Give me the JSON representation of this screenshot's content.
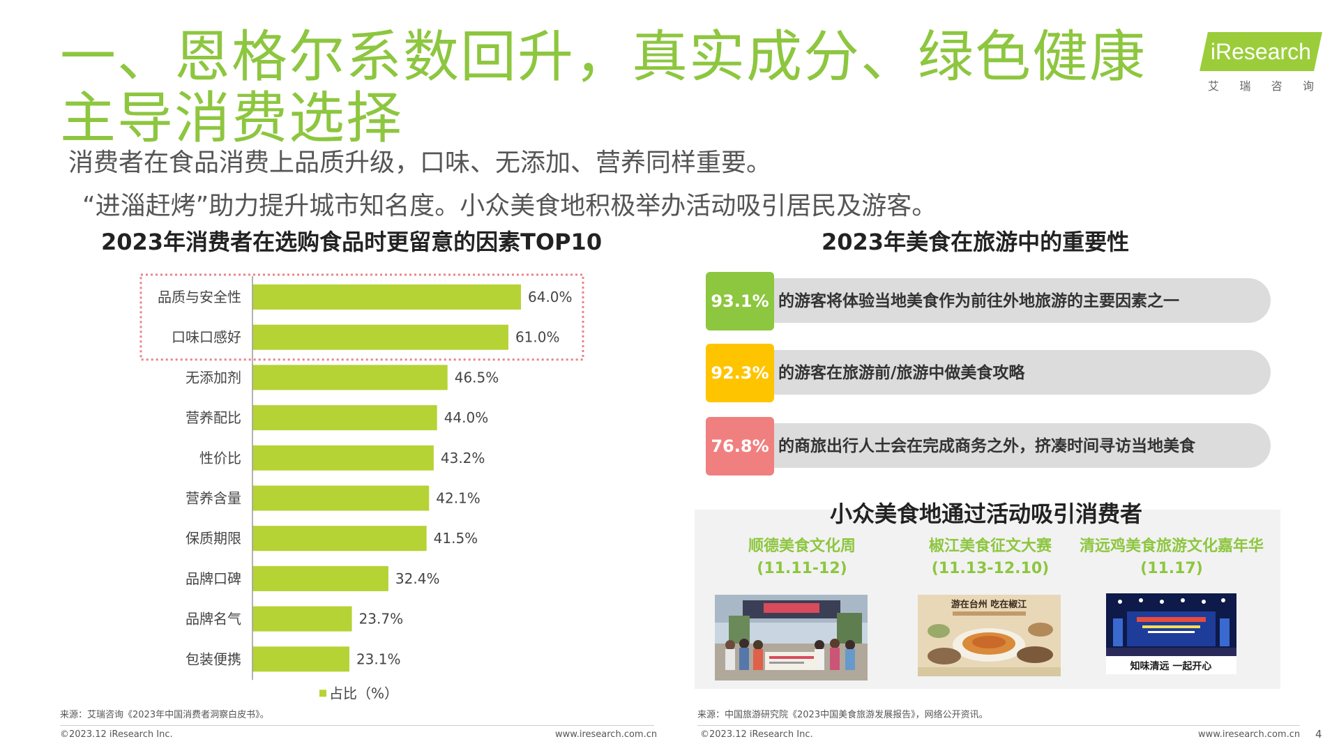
{
  "header": {
    "title": "一、恩格尔系数回升，真实成分、绿色健康主导消费选择",
    "subtitle_1": "消费者在食品消费上品质升级，口味、无添加、营养同样重要。",
    "subtitle_2": "“进淄赶烤”助力提升城市知名度。小众美食地积极举办活动吸引居民及游客。",
    "logo_text": "iResearch",
    "logo_cn": [
      "艾",
      "瑞",
      "咨",
      "询"
    ]
  },
  "left": {
    "title": "2023年消费者在选购食品时更留意的因素TOP10",
    "legend": "占比（%）",
    "source": "来源：艾瑞咨询《2023年中国消费者洞察白皮书》。"
  },
  "chart_data": {
    "type": "bar",
    "orientation": "horizontal",
    "title": "2023年消费者在选购食品时更留意的因素TOP10",
    "categories": [
      "品质与安全性",
      "口味口感好",
      "无添加剂",
      "营养配比",
      "性价比",
      "营养含量",
      "保质期限",
      "品牌口碑",
      "品牌名气",
      "包装便携"
    ],
    "series": [
      {
        "name": "占比（%）",
        "values": [
          64.0,
          61.0,
          46.5,
          44.0,
          43.2,
          42.1,
          41.5,
          32.4,
          23.7,
          23.1
        ]
      }
    ],
    "value_labels": [
      "64.0%",
      "61.0%",
      "46.5%",
      "44.0%",
      "43.2%",
      "42.1%",
      "41.5%",
      "32.4%",
      "23.7%",
      "23.1%"
    ],
    "highlighted_categories": [
      "品质与安全性",
      "口味口感好"
    ],
    "xlim": [
      0,
      70
    ],
    "grid": false,
    "legend_position": "bottom",
    "bar_color": "#b5d334"
  },
  "right": {
    "title": "2023年美食在旅游中的重要性",
    "stats": [
      {
        "value": "93.1%",
        "text": "的游客将体验当地美食作为前往外地旅游的主要因素之一",
        "color": "#8dc63f"
      },
      {
        "value": "92.3%",
        "text": "的游客在旅游前/旅游中做美食攻略",
        "color": "#ffc400"
      },
      {
        "value": "76.8%",
        "text": "的商旅出行人士会在完成商务之外，挤凑时间寻访当地美食",
        "color": "#f08080"
      }
    ],
    "events_title": "小众美食地通过活动吸引消费者",
    "events": [
      {
        "name": "顺德美食文化周",
        "date": "(11.11-12)"
      },
      {
        "name": "椒江美食征文大赛",
        "date": "(11.13-12.10)"
      },
      {
        "name": "清远鸡美食旅游文化嘉年华",
        "date": "(11.17)"
      }
    ],
    "photo_captions": [
      "游在台州 吃在椒江",
      "知味清远 一起开心"
    ],
    "source": "来源：中国旅游研究院《2023中国美食旅游发展报告》，网络公开资讯。"
  },
  "footer": {
    "copyright": "©2023.12 iResearch Inc.",
    "website": "www.iresearch.com.cn",
    "page": "4"
  }
}
